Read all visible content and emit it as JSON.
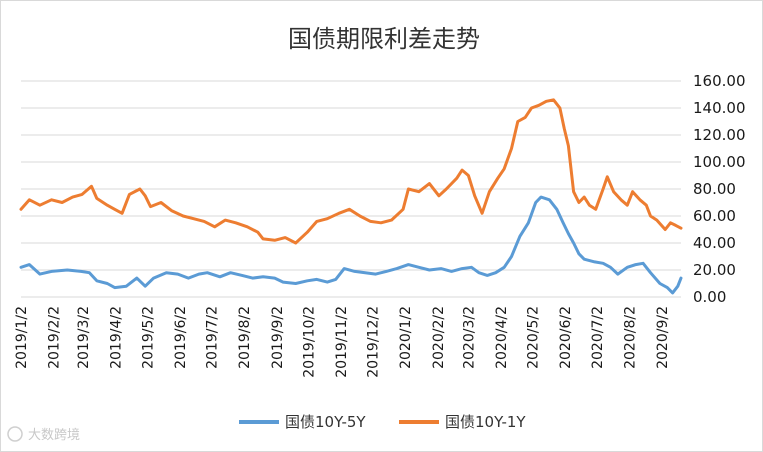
{
  "chart_data": {
    "type": "line",
    "title": "国债期限利差走势",
    "ylim": [
      0,
      160
    ],
    "yticks": [
      "0.00",
      "20.00",
      "40.00",
      "60.00",
      "80.00",
      "100.00",
      "120.00",
      "140.00",
      "160.00"
    ],
    "grid": "horizontal",
    "legend_position": "bottom",
    "x_tick_labels": [
      "2019/1/2",
      "2019/2/2",
      "2019/3/2",
      "2019/4/2",
      "2019/5/2",
      "2019/6/2",
      "2019/7/2",
      "2019/8/2",
      "2019/9/2",
      "2019/10/2",
      "2019/11/2",
      "2019/12/2",
      "2020/1/2",
      "2020/2/2",
      "2020/3/2",
      "2020/4/2",
      "2020/5/2",
      "2020/6/2",
      "2020/7/2",
      "2020/8/2",
      "2020/9/2"
    ],
    "x_start": "2019/1/2",
    "x_end": "2020/9/20",
    "series": [
      {
        "name": "国债10Y-5Y",
        "color": "#5b9bd5",
        "points": [
          [
            "2019/1/2",
            22
          ],
          [
            "2019/1/10",
            24
          ],
          [
            "2019/1/20",
            17
          ],
          [
            "2019/1/31",
            19
          ],
          [
            "2019/2/15",
            20
          ],
          [
            "2019/2/28",
            19
          ],
          [
            "2019/3/8",
            18
          ],
          [
            "2019/3/15",
            12
          ],
          [
            "2019/3/25",
            10
          ],
          [
            "2019/4/1",
            7
          ],
          [
            "2019/4/12",
            8
          ],
          [
            "2019/4/22",
            14
          ],
          [
            "2019/4/30",
            8
          ],
          [
            "2019/5/8",
            14
          ],
          [
            "2019/5/20",
            18
          ],
          [
            "2019/5/31",
            17
          ],
          [
            "2019/6/10",
            14
          ],
          [
            "2019/6/20",
            17
          ],
          [
            "2019/6/28",
            18
          ],
          [
            "2019/7/10",
            15
          ],
          [
            "2019/7/20",
            18
          ],
          [
            "2019/7/31",
            16
          ],
          [
            "2019/8/10",
            14
          ],
          [
            "2019/8/20",
            15
          ],
          [
            "2019/8/31",
            14
          ],
          [
            "2019/9/8",
            11
          ],
          [
            "2019/9/20",
            10
          ],
          [
            "2019/10/1",
            12
          ],
          [
            "2019/10/10",
            13
          ],
          [
            "2019/10/20",
            11
          ],
          [
            "2019/10/28",
            13
          ],
          [
            "2019/11/5",
            21
          ],
          [
            "2019/11/15",
            19
          ],
          [
            "2019/11/25",
            18
          ],
          [
            "2019/12/5",
            17
          ],
          [
            "2019/12/15",
            19
          ],
          [
            "2019/12/25",
            21
          ],
          [
            "2020/1/5",
            24
          ],
          [
            "2020/1/15",
            22
          ],
          [
            "2020/1/25",
            20
          ],
          [
            "2020/2/5",
            21
          ],
          [
            "2020/2/15",
            19
          ],
          [
            "2020/2/25",
            21
          ],
          [
            "2020/3/5",
            22
          ],
          [
            "2020/3/12",
            18
          ],
          [
            "2020/3/20",
            16
          ],
          [
            "2020/3/28",
            18
          ],
          [
            "2020/4/5",
            22
          ],
          [
            "2020/4/12",
            30
          ],
          [
            "2020/4/20",
            45
          ],
          [
            "2020/4/28",
            55
          ],
          [
            "2020/5/5",
            70
          ],
          [
            "2020/5/10",
            74
          ],
          [
            "2020/5/18",
            72
          ],
          [
            "2020/5/25",
            65
          ],
          [
            "2020/5/31",
            55
          ],
          [
            "2020/6/5",
            47
          ],
          [
            "2020/6/10",
            40
          ],
          [
            "2020/6/15",
            32
          ],
          [
            "2020/6/20",
            28
          ],
          [
            "2020/6/30",
            26
          ],
          [
            "2020/7/8",
            25
          ],
          [
            "2020/7/15",
            22
          ],
          [
            "2020/7/22",
            17
          ],
          [
            "2020/7/31",
            22
          ],
          [
            "2020/8/8",
            24
          ],
          [
            "2020/8/15",
            25
          ],
          [
            "2020/8/22",
            18
          ],
          [
            "2020/8/31",
            10
          ],
          [
            "2020/9/7",
            7
          ],
          [
            "2020/9/12",
            3
          ],
          [
            "2020/9/17",
            8
          ],
          [
            "2020/9/20",
            14
          ]
        ]
      },
      {
        "name": "国债10Y-1Y",
        "color": "#ed7d31",
        "points": [
          [
            "2019/1/2",
            65
          ],
          [
            "2019/1/10",
            72
          ],
          [
            "2019/1/20",
            68
          ],
          [
            "2019/1/31",
            72
          ],
          [
            "2019/2/10",
            70
          ],
          [
            "2019/2/20",
            74
          ],
          [
            "2019/3/1",
            76
          ],
          [
            "2019/3/10",
            82
          ],
          [
            "2019/3/15",
            73
          ],
          [
            "2019/3/25",
            68
          ],
          [
            "2019/4/1",
            65
          ],
          [
            "2019/4/8",
            62
          ],
          [
            "2019/4/15",
            76
          ],
          [
            "2019/4/25",
            80
          ],
          [
            "2019/4/30",
            75
          ],
          [
            "2019/5/5",
            67
          ],
          [
            "2019/5/15",
            70
          ],
          [
            "2019/5/25",
            64
          ],
          [
            "2019/6/5",
            60
          ],
          [
            "2019/6/15",
            58
          ],
          [
            "2019/6/25",
            56
          ],
          [
            "2019/7/5",
            52
          ],
          [
            "2019/7/15",
            57
          ],
          [
            "2019/7/25",
            55
          ],
          [
            "2019/8/5",
            52
          ],
          [
            "2019/8/15",
            48
          ],
          [
            "2019/8/20",
            43
          ],
          [
            "2019/8/31",
            42
          ],
          [
            "2019/9/10",
            44
          ],
          [
            "2019/9/20",
            40
          ],
          [
            "2019/10/1",
            48
          ],
          [
            "2019/10/10",
            56
          ],
          [
            "2019/10/20",
            58
          ],
          [
            "2019/10/31",
            62
          ],
          [
            "2019/11/10",
            65
          ],
          [
            "2019/11/20",
            60
          ],
          [
            "2019/11/30",
            56
          ],
          [
            "2019/12/10",
            55
          ],
          [
            "2019/12/20",
            57
          ],
          [
            "2019/12/31",
            65
          ],
          [
            "2020/1/5",
            80
          ],
          [
            "2020/1/15",
            78
          ],
          [
            "2020/1/25",
            84
          ],
          [
            "2020/2/3",
            75
          ],
          [
            "2020/2/10",
            80
          ],
          [
            "2020/2/20",
            88
          ],
          [
            "2020/2/25",
            94
          ],
          [
            "2020/3/2",
            90
          ],
          [
            "2020/3/8",
            75
          ],
          [
            "2020/3/15",
            62
          ],
          [
            "2020/3/22",
            78
          ],
          [
            "2020/3/30",
            88
          ],
          [
            "2020/4/5",
            95
          ],
          [
            "2020/4/12",
            110
          ],
          [
            "2020/4/18",
            130
          ],
          [
            "2020/4/25",
            133
          ],
          [
            "2020/5/1",
            140
          ],
          [
            "2020/5/8",
            142
          ],
          [
            "2020/5/15",
            145
          ],
          [
            "2020/5/22",
            146
          ],
          [
            "2020/5/28",
            140
          ],
          [
            "2020/6/1",
            125
          ],
          [
            "2020/6/5",
            112
          ],
          [
            "2020/6/10",
            78
          ],
          [
            "2020/6/15",
            70
          ],
          [
            "2020/6/20",
            74
          ],
          [
            "2020/6/25",
            68
          ],
          [
            "2020/7/1",
            65
          ],
          [
            "2020/7/8",
            80
          ],
          [
            "2020/7/12",
            89
          ],
          [
            "2020/7/18",
            78
          ],
          [
            "2020/7/25",
            72
          ],
          [
            "2020/7/31",
            68
          ],
          [
            "2020/8/5",
            78
          ],
          [
            "2020/8/12",
            72
          ],
          [
            "2020/8/18",
            68
          ],
          [
            "2020/8/22",
            60
          ],
          [
            "2020/8/28",
            57
          ],
          [
            "2020/9/5",
            50
          ],
          [
            "2020/9/10",
            55
          ],
          [
            "2020/9/15",
            53
          ],
          [
            "2020/9/20",
            51
          ]
        ]
      }
    ]
  },
  "watermark": "大数跨境"
}
